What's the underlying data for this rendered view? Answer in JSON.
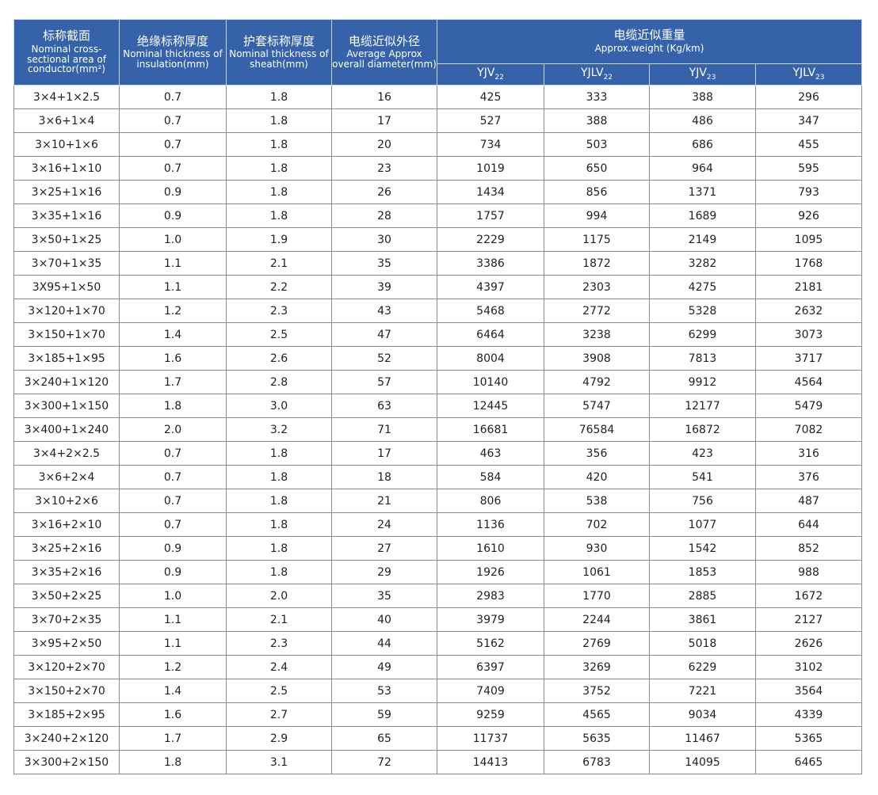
{
  "header": {
    "columns": [
      {
        "zh": "标称截面",
        "en": "Nominal cross-sectional area of conductor(mm²)"
      },
      {
        "zh": "绝缘标称厚度",
        "en": "Nominal thickness of insulation(mm)"
      },
      {
        "zh": "护套标称厚度",
        "en": "Nominal thickness of sheath(mm)"
      },
      {
        "zh": "电缆近似外径",
        "en": "Average Approx overall diameter(mm)"
      }
    ],
    "group": {
      "zh": "电缆近似重量",
      "en": "Approx.weight (Kg/km)"
    },
    "subcolumns": [
      {
        "base": "YJV",
        "sub": "22"
      },
      {
        "base": "YJLV",
        "sub": "22"
      },
      {
        "base": "YJV",
        "sub": "23"
      },
      {
        "base": "YJLV",
        "sub": "23"
      }
    ]
  },
  "table": {
    "rows": [
      [
        "3×4+1×2.5",
        "0.7",
        "1.8",
        "16",
        "425",
        "333",
        "388",
        "296"
      ],
      [
        "3×6+1×4",
        "0.7",
        "1.8",
        "17",
        "527",
        "388",
        "486",
        "347"
      ],
      [
        "3×10+1×6",
        "0.7",
        "1.8",
        "20",
        "734",
        "503",
        "686",
        "455"
      ],
      [
        "3×16+1×10",
        "0.7",
        "1.8",
        "23",
        "1019",
        "650",
        "964",
        "595"
      ],
      [
        "3×25+1×16",
        "0.9",
        "1.8",
        "26",
        "1434",
        "856",
        "1371",
        "793"
      ],
      [
        "3×35+1×16",
        "0.9",
        "1.8",
        "28",
        "1757",
        "994",
        "1689",
        "926"
      ],
      [
        "3×50+1×25",
        "1.0",
        "1.9",
        "30",
        "2229",
        "1175",
        "2149",
        "1095"
      ],
      [
        "3×70+1×35",
        "1.1",
        "2.1",
        "35",
        "3386",
        "1872",
        "3282",
        "1768"
      ],
      [
        "3X95+1×50",
        "1.1",
        "2.2",
        "39",
        "4397",
        "2303",
        "4275",
        "2181"
      ],
      [
        "3×120+1×70",
        "1.2",
        "2.3",
        "43",
        "5468",
        "2772",
        "5328",
        "2632"
      ],
      [
        "3×150+1×70",
        "1.4",
        "2.5",
        "47",
        "6464",
        "3238",
        "6299",
        "3073"
      ],
      [
        "3×185+1×95",
        "1.6",
        "2.6",
        "52",
        "8004",
        "3908",
        "7813",
        "3717"
      ],
      [
        "3×240+1×120",
        "1.7",
        "2.8",
        "57",
        "10140",
        "4792",
        "9912",
        "4564"
      ],
      [
        "3×300+1×150",
        "1.8",
        "3.0",
        "63",
        "12445",
        "5747",
        "12177",
        "5479"
      ],
      [
        "3×400+1×240",
        "2.0",
        "3.2",
        "71",
        "16681",
        "76584",
        "16872",
        "7082"
      ],
      [
        "3×4+2×2.5",
        "0.7",
        "1.8",
        "17",
        "463",
        "356",
        "423",
        "316"
      ],
      [
        "3×6+2×4",
        "0.7",
        "1.8",
        "18",
        "584",
        "420",
        "541",
        "376"
      ],
      [
        "3×10+2×6",
        "0.7",
        "1.8",
        "21",
        "806",
        "538",
        "756",
        "487"
      ],
      [
        "3×16+2×10",
        "0.7",
        "1.8",
        "24",
        "1136",
        "702",
        "1077",
        "644"
      ],
      [
        "3×25+2×16",
        "0.9",
        "1.8",
        "27",
        "1610",
        "930",
        "1542",
        "852"
      ],
      [
        "3×35+2×16",
        "0.9",
        "1.8",
        "29",
        "1926",
        "1061",
        "1853",
        "988"
      ],
      [
        "3×50+2×25",
        "1.0",
        "2.0",
        "35",
        "2983",
        "1770",
        "2885",
        "1672"
      ],
      [
        "3×70+2×35",
        "1.1",
        "2.1",
        "40",
        "3979",
        "2244",
        "3861",
        "2127"
      ],
      [
        "3×95+2×50",
        "1.1",
        "2.3",
        "44",
        "5162",
        "2769",
        "5018",
        "2626"
      ],
      [
        "3×120+2×70",
        "1.2",
        "2.4",
        "49",
        "6397",
        "3269",
        "6229",
        "3102"
      ],
      [
        "3×150+2×70",
        "1.4",
        "2.5",
        "53",
        "7409",
        "3752",
        "7221",
        "3564"
      ],
      [
        "3×185+2×95",
        "1.6",
        "2.7",
        "59",
        "9259",
        "4565",
        "9034",
        "4339"
      ],
      [
        "3×240+2×120",
        "1.7",
        "2.9",
        "65",
        "11737",
        "5635",
        "11467",
        "5365"
      ],
      [
        "3×300+2×150",
        "1.8",
        "3.1",
        "72",
        "14413",
        "6783",
        "14095",
        "6465"
      ]
    ]
  }
}
